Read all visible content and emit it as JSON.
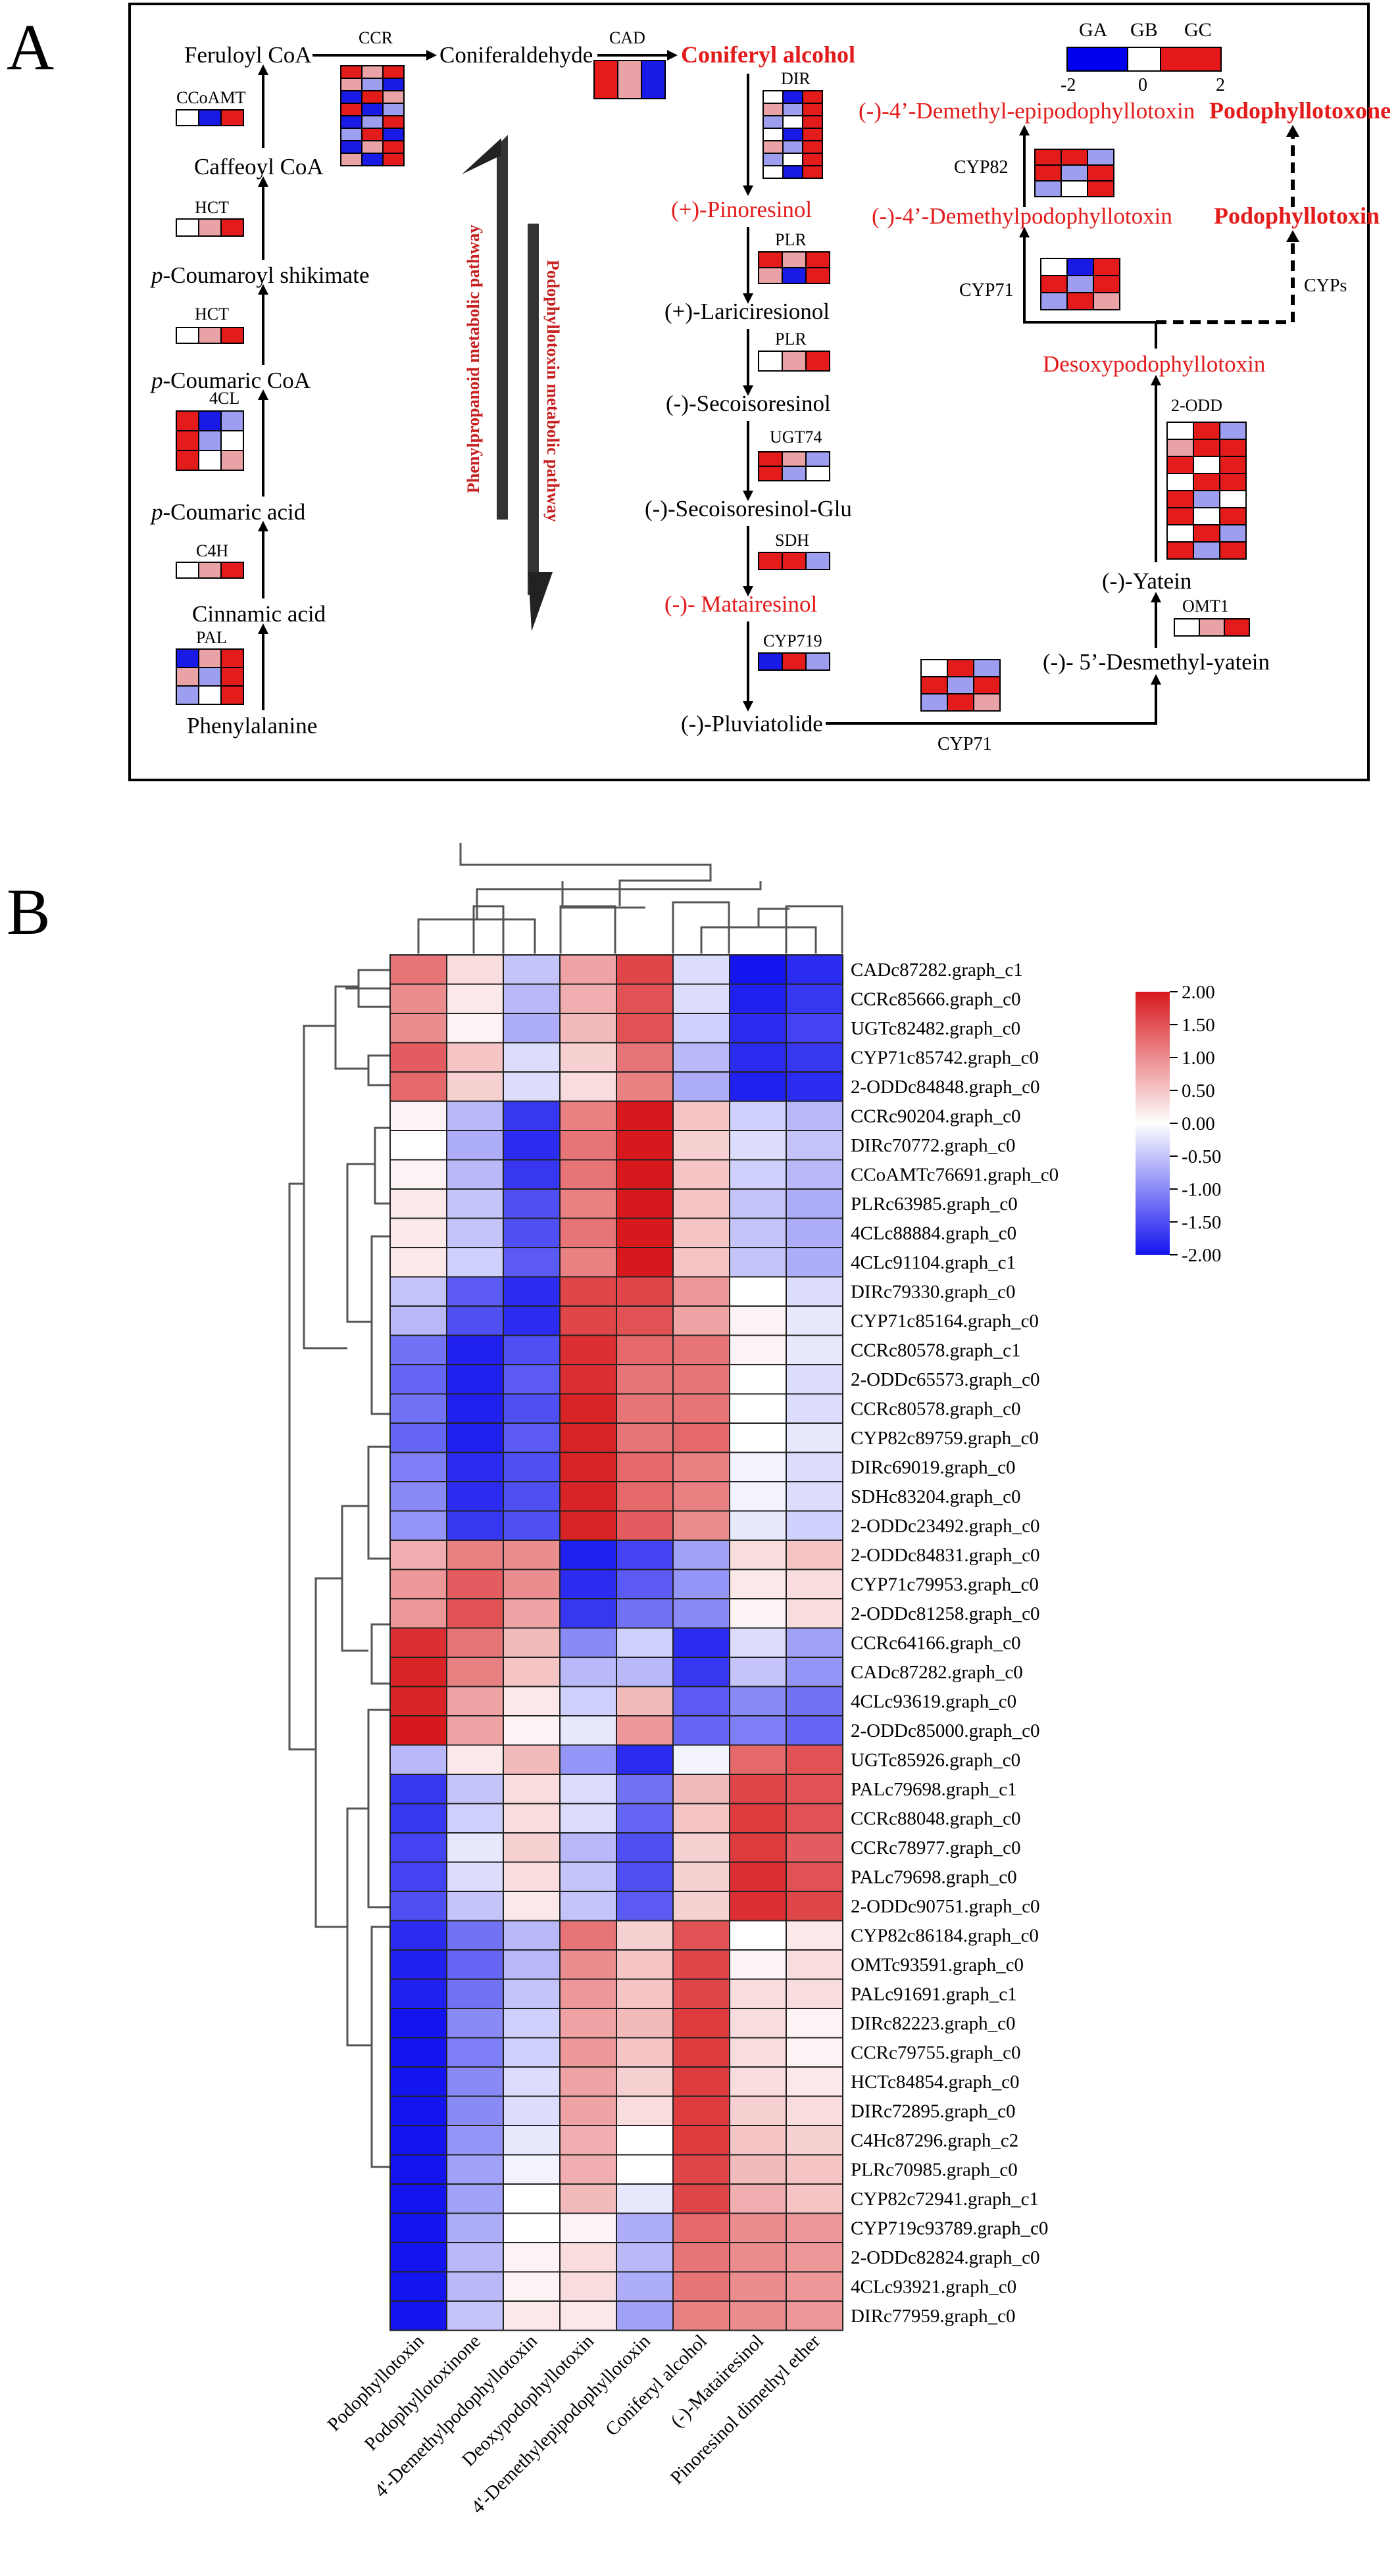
{
  "panel_labels": {
    "a": "A",
    "b": "B"
  },
  "pathway": {
    "compounds": {
      "feruloyl_coa": "Feruloyl CoA",
      "coniferaldehyde": "Coniferaldehyde",
      "coniferyl_alcohol": "Coniferyl alcohol",
      "caffeoyl_coa": "Caffeoyl CoA",
      "p_coumaroyl_shikimate": "-Coumaroyl shikimate",
      "p_coumaric_coa": "-Coumaric CoA",
      "p_coumaric_acid": "-Coumaric acid",
      "p_prefix": "p",
      "cinnamic_acid": "Cinnamic acid",
      "phenylalanine": "Phenylalanine",
      "pinoresinol": "(+)-Pinoresinol",
      "lariciresinol": "(+)-Lariciresionol",
      "secoisoresinol": "(-)-Secoisoresinol",
      "secoisoresinol_glu": "(-)-Secoisoresinol-Glu",
      "matairesinol": "(-)- Matairesinol",
      "pluviatolide": "(-)-Pluviatolide",
      "desmethyl_yatein": "(-)- 5’-Desmethyl-yatein",
      "yatein": "(-)-Yatein",
      "desoxypodophyllotoxin": "Desoxypodophyllotoxin",
      "demethylpodophyllotoxin": "(-)-4’-Demethylpodophyllotoxin",
      "demethyl_epipodophyllotoxin": "(-)-4’-Demethyl-epipodophyllotoxin",
      "podophyllotoxin": "Podophyllotoxin",
      "podophyllotoxone": "Podophyllotoxone"
    },
    "enzymes": {
      "ccr": "CCR",
      "cad": "CAD",
      "dir": "DIR",
      "ccoamt": "CCoAMT",
      "hct1": "HCT",
      "hct2": "HCT",
      "fourcl": "4CL",
      "c4h": "C4H",
      "pal": "PAL",
      "plr1": "PLR",
      "plr2": "PLR",
      "ugt74": "UGT74",
      "sdh": "SDH",
      "cyp719": "CYP719",
      "cyp71_bottom": "CYP71",
      "omt1": "OMT1",
      "two_odd": "2-ODD",
      "cyp71_top": "CYP71",
      "cyp82": "CYP82",
      "cyps": "CYPs"
    },
    "pathway_labels": {
      "phenylpropanoid": "Phenylpropanoid metabolic pathway",
      "podophyllotoxin": "Podophyllotoxin metabolic pathway"
    },
    "legend": {
      "groups": [
        "GA",
        "GB",
        "GC"
      ],
      "ticks": [
        "-2",
        "0",
        "2"
      ]
    },
    "enzyme_heatmaps": {
      "ccr": [
        [
          2,
          1,
          2
        ],
        [
          1,
          1,
          0
        ],
        [
          0,
          2,
          1
        ],
        [
          2,
          0,
          1
        ],
        [
          0,
          1,
          2
        ],
        [
          1,
          2,
          0
        ],
        [
          0,
          1,
          2
        ],
        [
          1,
          0,
          2
        ]
      ],
      "cad": [
        [
          2,
          1,
          0
        ]
      ],
      "dir": [
        [
          1,
          0,
          2
        ],
        [
          1,
          1,
          2
        ],
        [
          1,
          1,
          2
        ],
        [
          1,
          0,
          2
        ],
        [
          1,
          1,
          2
        ],
        [
          1,
          1,
          2
        ],
        [
          1,
          0,
          2
        ]
      ],
      "ccoamt": [
        [
          1,
          0,
          2
        ]
      ],
      "hct1": [
        [
          1,
          1,
          2
        ]
      ],
      "hct2": [
        [
          1,
          1,
          2
        ]
      ],
      "fourcl": [
        [
          2,
          0,
          1
        ],
        [
          2,
          1,
          1
        ],
        [
          2,
          1,
          1
        ]
      ],
      "c4h": [
        [
          1,
          1,
          2
        ]
      ],
      "pal": [
        [
          0,
          1,
          2
        ],
        [
          1,
          1,
          2
        ],
        [
          1,
          1,
          2
        ]
      ],
      "plr1": [
        [
          2,
          1,
          2
        ],
        [
          1,
          0,
          2
        ]
      ],
      "plr2": [
        [
          1,
          1,
          2
        ]
      ],
      "ugt74": [
        [
          2,
          1,
          1
        ],
        [
          2,
          1,
          1
        ]
      ],
      "sdh": [
        [
          2,
          2,
          1
        ]
      ],
      "cyp719": [
        [
          0,
          2,
          1
        ]
      ],
      "cyp71_bottom": [
        [
          1,
          2,
          1
        ],
        [
          2,
          1,
          2
        ],
        [
          1,
          2,
          1
        ]
      ],
      "omt1": [
        [
          1,
          1,
          2
        ]
      ],
      "two_odd": [
        [
          1,
          2,
          1
        ],
        [
          1,
          2,
          2
        ],
        [
          2,
          1,
          2
        ],
        [
          1,
          2,
          2
        ],
        [
          2,
          1,
          1
        ],
        [
          2,
          1,
          2
        ],
        [
          1,
          2,
          1
        ],
        [
          2,
          1,
          2
        ]
      ],
      "cyp71_top": [
        [
          1,
          0,
          2
        ],
        [
          2,
          1,
          2
        ],
        [
          1,
          2,
          1
        ]
      ],
      "cyp82": [
        [
          2,
          2,
          1
        ],
        [
          2,
          1,
          2
        ],
        [
          1,
          1,
          2
        ]
      ]
    }
  },
  "heatmap": {
    "colorbar_ticks": [
      "2.00",
      "1.50",
      "1.00",
      "0.50",
      "0.00",
      "-0.50",
      "-1.00",
      "-1.50",
      "-2.00"
    ],
    "columns": [
      "Podophyllotoxin",
      "Podophyllotoxinone",
      "4'-Demethylpodophyllotoxin",
      "Deoxypodophyllotoxin",
      "4'-Demethylepipodophyllotoxin",
      "Coniferyl alcohol",
      "(-)-Matairesinol",
      "Pinoresinol dimethyl ether"
    ],
    "rows": [
      {
        "label": "CADc87282.graph_c1",
        "values": [
          1.2,
          0.3,
          -0.5,
          0.8,
          1.6,
          -0.3,
          -2.0,
          -1.8
        ]
      },
      {
        "label": "CCRc85666.graph_c0",
        "values": [
          1.0,
          0.2,
          -0.6,
          0.7,
          1.5,
          -0.3,
          -1.9,
          -1.7
        ]
      },
      {
        "label": "UGTc82482.graph_c0",
        "values": [
          1.0,
          0.1,
          -0.7,
          0.6,
          1.5,
          -0.4,
          -1.8,
          -1.6
        ]
      },
      {
        "label": "CYP71c85742.graph_c0",
        "values": [
          1.4,
          0.5,
          -0.3,
          0.4,
          1.2,
          -0.6,
          -1.8,
          -1.7
        ]
      },
      {
        "label": "2-ODDc84848.graph_c0",
        "values": [
          1.3,
          0.4,
          -0.3,
          0.3,
          1.1,
          -0.7,
          -1.9,
          -1.8
        ]
      },
      {
        "label": "CCRc90204.graph_c0",
        "values": [
          0.1,
          -0.6,
          -1.7,
          1.1,
          2.0,
          0.5,
          -0.4,
          -0.6
        ]
      },
      {
        "label": "DIRc70772.graph_c0",
        "values": [
          0.0,
          -0.7,
          -1.8,
          1.2,
          2.0,
          0.4,
          -0.3,
          -0.5
        ]
      },
      {
        "label": "CCoAMTc76691.graph_c0",
        "values": [
          0.1,
          -0.6,
          -1.7,
          1.2,
          2.0,
          0.5,
          -0.4,
          -0.6
        ]
      },
      {
        "label": "PLRc63985.graph_c0",
        "values": [
          0.2,
          -0.5,
          -1.5,
          1.1,
          2.0,
          0.5,
          -0.5,
          -0.7
        ]
      },
      {
        "label": "4CLc88884.graph_c0",
        "values": [
          0.2,
          -0.5,
          -1.5,
          1.2,
          2.0,
          0.5,
          -0.5,
          -0.7
        ]
      },
      {
        "label": "4CLc91104.graph_c1",
        "values": [
          0.2,
          -0.4,
          -1.4,
          1.1,
          2.0,
          0.5,
          -0.5,
          -0.7
        ]
      },
      {
        "label": "DIRc79330.graph_c0",
        "values": [
          -0.5,
          -1.4,
          -1.8,
          1.6,
          1.6,
          0.9,
          0.0,
          -0.3
        ]
      },
      {
        "label": "CYP71c85164.graph_c0",
        "values": [
          -0.6,
          -1.5,
          -1.8,
          1.6,
          1.5,
          0.8,
          0.1,
          -0.2
        ]
      },
      {
        "label": "CCRc80578.graph_c1",
        "values": [
          -1.2,
          -1.9,
          -1.5,
          1.8,
          1.3,
          1.2,
          0.1,
          -0.2
        ]
      },
      {
        "label": "2-ODDc65573.graph_c0",
        "values": [
          -1.3,
          -1.9,
          -1.4,
          1.8,
          1.2,
          1.2,
          0.0,
          -0.3
        ]
      },
      {
        "label": "CCRc80578.graph_c0",
        "values": [
          -1.2,
          -1.9,
          -1.5,
          1.9,
          1.2,
          1.2,
          0.0,
          -0.3
        ]
      },
      {
        "label": "CYP82c89759.graph_c0",
        "values": [
          -1.3,
          -1.9,
          -1.4,
          1.9,
          1.2,
          1.3,
          0.0,
          -0.2
        ]
      },
      {
        "label": "DIRc69019.graph_c0",
        "values": [
          -1.1,
          -1.8,
          -1.5,
          1.9,
          1.3,
          1.1,
          -0.1,
          -0.3
        ]
      },
      {
        "label": "SDHc83204.graph_c0",
        "values": [
          -1.0,
          -1.8,
          -1.5,
          1.9,
          1.3,
          1.1,
          -0.1,
          -0.3
        ]
      },
      {
        "label": "2-ODDc23492.graph_c0",
        "values": [
          -0.9,
          -1.7,
          -1.5,
          1.9,
          1.4,
          1.0,
          -0.2,
          -0.4
        ]
      },
      {
        "label": "2-ODDc84831.graph_c0",
        "values": [
          0.7,
          1.1,
          1.0,
          -1.9,
          -1.6,
          -0.8,
          0.3,
          0.5
        ]
      },
      {
        "label": "CYP71c79953.graph_c0",
        "values": [
          0.9,
          1.4,
          1.0,
          -1.8,
          -1.4,
          -0.9,
          0.2,
          0.3
        ]
      },
      {
        "label": "2-ODDc81258.graph_c0",
        "values": [
          0.9,
          1.5,
          0.8,
          -1.7,
          -1.2,
          -1.0,
          0.1,
          0.3
        ]
      },
      {
        "label": "CCRc64166.graph_c0",
        "values": [
          1.8,
          1.2,
          0.6,
          -1.0,
          -0.4,
          -1.8,
          -0.3,
          -0.8
        ]
      },
      {
        "label": "CADc87282.graph_c0",
        "values": [
          1.9,
          1.1,
          0.5,
          -0.6,
          -0.6,
          -1.7,
          -0.5,
          -0.9
        ]
      },
      {
        "label": "4CLc93619.graph_c0",
        "values": [
          1.9,
          0.8,
          0.2,
          -0.4,
          0.6,
          -1.4,
          -1.0,
          -1.2
        ]
      },
      {
        "label": "2-ODDc85000.graph_c0",
        "values": [
          2.0,
          0.8,
          0.1,
          -0.2,
          0.9,
          -1.3,
          -1.1,
          -1.3
        ]
      },
      {
        "label": "UGTc85926.graph_c0",
        "values": [
          -0.6,
          0.2,
          0.6,
          -0.9,
          -1.8,
          -0.1,
          1.3,
          1.5
        ]
      },
      {
        "label": "PALc79698.graph_c1",
        "values": [
          -1.7,
          -0.5,
          0.3,
          -0.3,
          -1.2,
          0.6,
          1.6,
          1.5
        ]
      },
      {
        "label": "CCRc88048.graph_c0",
        "values": [
          -1.7,
          -0.4,
          0.3,
          -0.3,
          -1.3,
          0.5,
          1.7,
          1.5
        ]
      },
      {
        "label": "CCRc78977.graph_c0",
        "values": [
          -1.6,
          -0.2,
          0.4,
          -0.6,
          -1.5,
          0.4,
          1.7,
          1.4
        ]
      },
      {
        "label": "PALc79698.graph_c0",
        "values": [
          -1.6,
          -0.3,
          0.3,
          -0.5,
          -1.5,
          0.4,
          1.8,
          1.5
        ]
      },
      {
        "label": "2-ODDc90751.graph_c0",
        "values": [
          -1.5,
          -0.5,
          0.2,
          -0.5,
          -1.4,
          0.4,
          1.8,
          1.6
        ]
      },
      {
        "label": "CYP82c86184.graph_c0",
        "values": [
          -1.8,
          -1.2,
          -0.6,
          1.2,
          0.4,
          1.5,
          0.0,
          0.2
        ]
      },
      {
        "label": "OMTc93591.graph_c0",
        "values": [
          -1.9,
          -1.3,
          -0.6,
          1.0,
          0.5,
          1.6,
          0.1,
          0.3
        ]
      },
      {
        "label": "PALc91691.graph_c1",
        "values": [
          -1.9,
          -1.2,
          -0.5,
          0.9,
          0.5,
          1.6,
          0.3,
          0.3
        ]
      },
      {
        "label": "DIRc82223.graph_c0",
        "values": [
          -2.0,
          -1.0,
          -0.4,
          0.8,
          0.6,
          1.7,
          0.3,
          0.1
        ]
      },
      {
        "label": "CCRc79755.graph_c0",
        "values": [
          -2.0,
          -1.1,
          -0.4,
          0.9,
          0.5,
          1.7,
          0.3,
          0.1
        ]
      },
      {
        "label": "HCTc84854.graph_c0",
        "values": [
          -2.0,
          -1.0,
          -0.3,
          0.8,
          0.4,
          1.7,
          0.3,
          0.2
        ]
      },
      {
        "label": "DIRc72895.graph_c0",
        "values": [
          -2.0,
          -1.0,
          -0.3,
          0.8,
          0.3,
          1.7,
          0.4,
          0.3
        ]
      },
      {
        "label": "C4Hc87296.graph_c2",
        "values": [
          -2.0,
          -0.9,
          -0.2,
          0.7,
          0.0,
          1.7,
          0.5,
          0.4
        ]
      },
      {
        "label": "PLRc70985.graph_c0",
        "values": [
          -2.0,
          -0.8,
          -0.1,
          0.7,
          0.0,
          1.6,
          0.6,
          0.5
        ]
      },
      {
        "label": "CYP82c72941.graph_c1",
        "values": [
          -2.0,
          -0.8,
          0.0,
          0.6,
          -0.2,
          1.6,
          0.7,
          0.5
        ]
      },
      {
        "label": "CYP719c93789.graph_c0",
        "values": [
          -2.0,
          -0.7,
          0.0,
          0.1,
          -0.7,
          1.3,
          1.0,
          0.9
        ]
      },
      {
        "label": "2-ODDc82824.graph_c0",
        "values": [
          -2.0,
          -0.6,
          0.1,
          0.3,
          -0.6,
          1.2,
          1.0,
          0.9
        ]
      },
      {
        "label": "4CLc93921.graph_c0",
        "values": [
          -2.0,
          -0.6,
          0.1,
          0.3,
          -0.7,
          1.2,
          1.0,
          0.9
        ]
      },
      {
        "label": "DIRc77959.graph_c0",
        "values": [
          -2.0,
          -0.5,
          0.2,
          0.2,
          -0.8,
          1.1,
          1.0,
          0.9
        ]
      }
    ]
  }
}
